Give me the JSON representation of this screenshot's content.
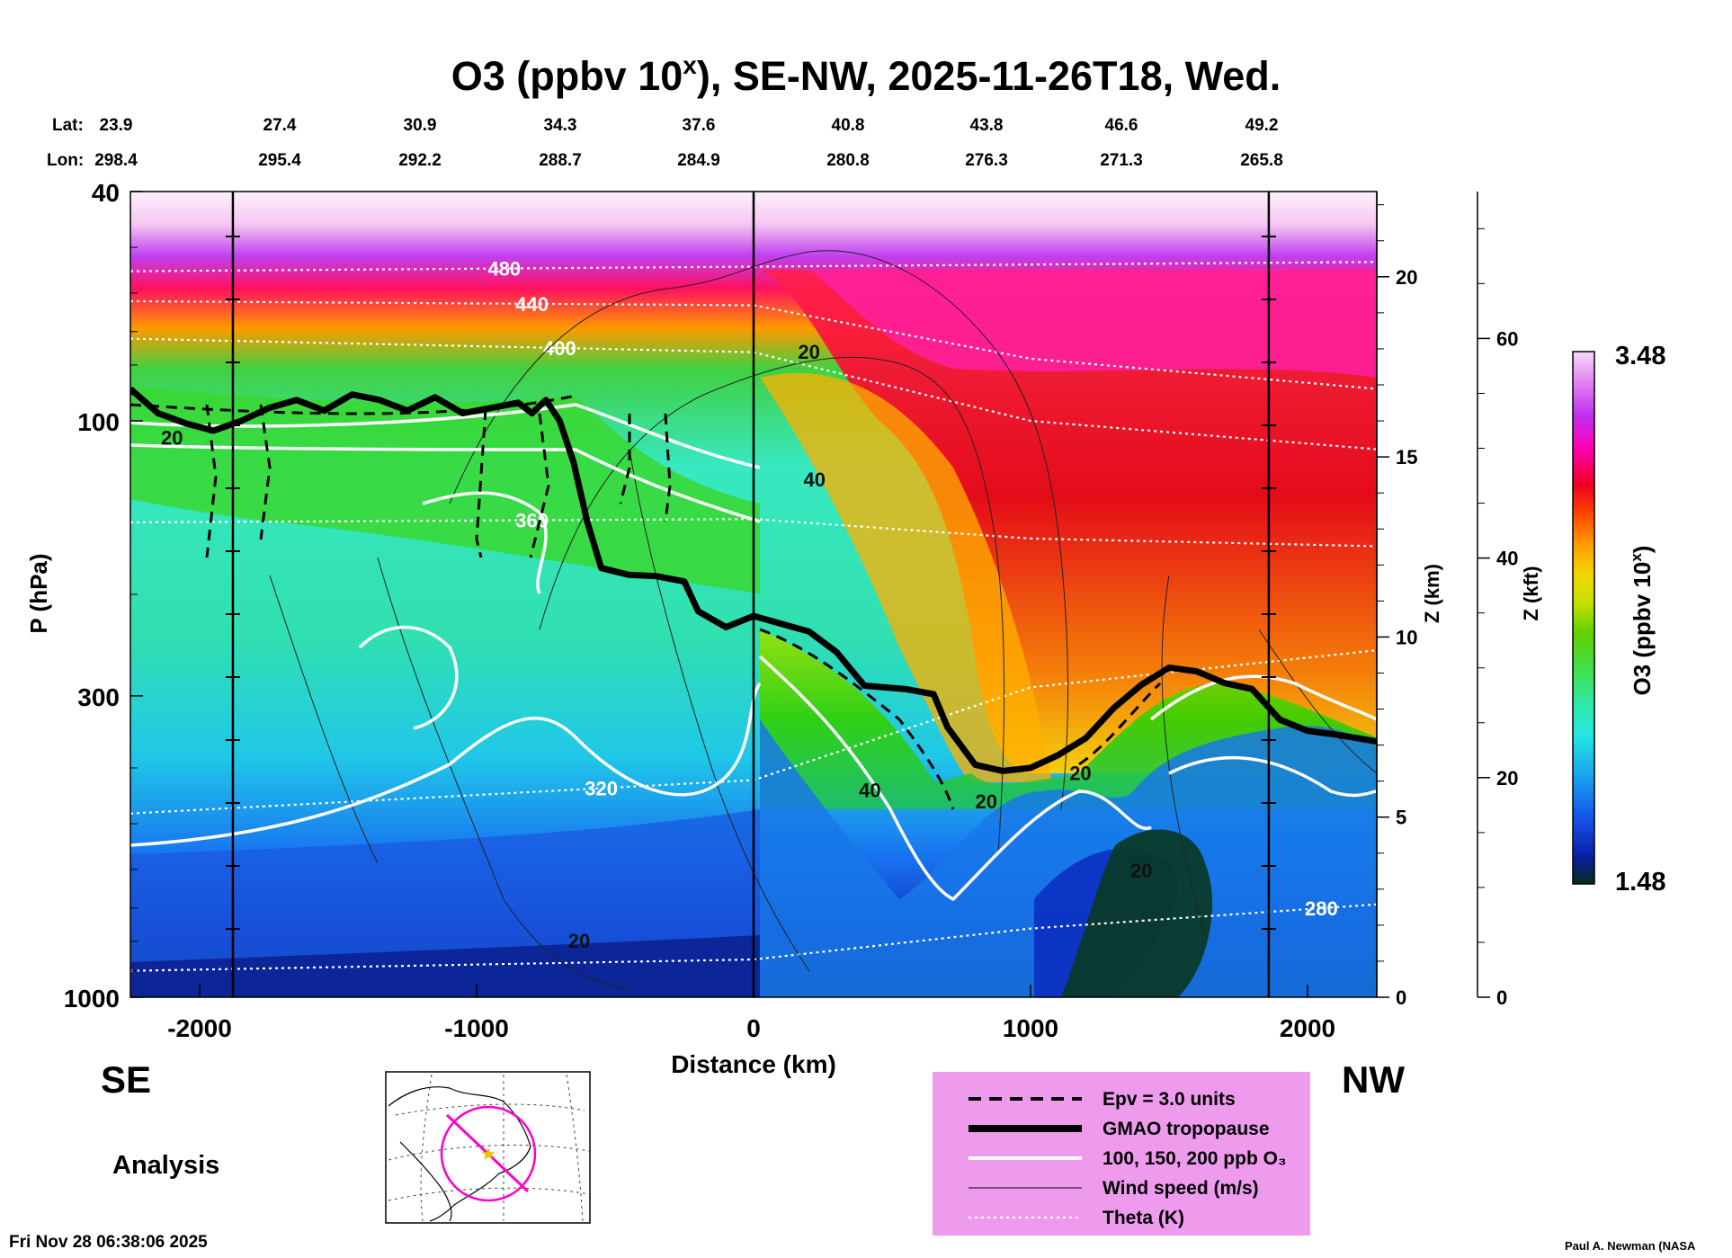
{
  "chart_data": {
    "type": "heatmap",
    "title": {
      "pre": "O3 (ppbv 10",
      "sup": "x",
      "post": "), SE-NW, 2025-11-26T18, Wed."
    },
    "lat_label": "Lat:",
    "lon_label": "Lon:",
    "lat_values": [
      "23.9",
      "27.4",
      "30.9",
      "34.3",
      "37.6",
      "40.8",
      "43.8",
      "46.6",
      "49.2"
    ],
    "lon_values": [
      "298.4",
      "295.4",
      "292.2",
      "288.7",
      "284.9",
      "280.8",
      "276.3",
      "271.3",
      "265.8"
    ],
    "xlabel": "Distance (km)",
    "xlim": [
      -2250,
      2250
    ],
    "xticks": [
      -2000,
      -1000,
      0,
      1000,
      2000
    ],
    "ylabel": "P (hPa)",
    "ylim": [
      1000,
      40
    ],
    "yscale": "log",
    "yticks": [
      40,
      100,
      300,
      1000
    ],
    "zkm_label": "Z (km)",
    "zkm_ticks": [
      0,
      5,
      10,
      15,
      20
    ],
    "zkft_label": "Z (kft)",
    "zkft_ticks": [
      0,
      20,
      40,
      60
    ],
    "colorbar_label_pre": "O3 (ppbv 10",
    "colorbar_label_sup": "x",
    "colorbar_label_post": ")",
    "colorbar_range": [
      "3.48",
      "1.48"
    ],
    "colormap": [
      "#062a1c",
      "#0a1ea0",
      "#1550e8",
      "#18a0f0",
      "#24e8e0",
      "#30e8a8",
      "#40e050",
      "#60d000",
      "#c8e000",
      "#f0d800",
      "#ff9900",
      "#ff4000",
      "#ee0022",
      "#ff00b8",
      "#c030f0",
      "#e080f0",
      "#f8d8f8"
    ],
    "left_label": "SE",
    "right_label": "NW",
    "analysis_label": "Analysis",
    "timestamp": "Fri Nov 28 06:38:06 2025",
    "credit": "Paul A. Newman (NASA",
    "tropopause": [
      [
        -2250,
        88
      ],
      [
        -2150,
        97
      ],
      [
        -2050,
        101
      ],
      [
        -1950,
        104
      ],
      [
        -1850,
        100
      ],
      [
        -1750,
        95
      ],
      [
        -1650,
        92
      ],
      [
        -1550,
        96
      ],
      [
        -1450,
        90
      ],
      [
        -1350,
        92
      ],
      [
        -1250,
        96
      ],
      [
        -1150,
        91
      ],
      [
        -1050,
        97
      ],
      [
        -950,
        95
      ],
      [
        -850,
        93
      ],
      [
        -800,
        97
      ],
      [
        -750,
        92
      ],
      [
        -700,
        100
      ],
      [
        -650,
        118
      ],
      [
        -600,
        150
      ],
      [
        -550,
        180
      ],
      [
        -450,
        185
      ],
      [
        -350,
        186
      ],
      [
        -250,
        190
      ],
      [
        -200,
        214
      ],
      [
        -100,
        228
      ],
      [
        0,
        218
      ],
      [
        100,
        225
      ],
      [
        200,
        232
      ],
      [
        300,
        252
      ],
      [
        400,
        288
      ],
      [
        550,
        292
      ],
      [
        650,
        298
      ],
      [
        700,
        340
      ],
      [
        800,
        395
      ],
      [
        900,
        405
      ],
      [
        1000,
        400
      ],
      [
        1100,
        380
      ],
      [
        1200,
        355
      ],
      [
        1300,
        315
      ],
      [
        1400,
        287
      ],
      [
        1500,
        268
      ],
      [
        1600,
        272
      ],
      [
        1700,
        285
      ],
      [
        1800,
        292
      ],
      [
        1900,
        330
      ],
      [
        2000,
        345
      ],
      [
        2100,
        350
      ],
      [
        2250,
        360
      ]
    ],
    "theta_levels": [
      {
        "label": "480",
        "lx": -900,
        "pts": [
          [
            -2250,
            55
          ],
          [
            0,
            54
          ],
          [
            2250,
            53
          ]
        ]
      },
      {
        "label": "440",
        "lx": -800,
        "pts": [
          [
            -2250,
            62
          ],
          [
            0,
            63
          ],
          [
            1000,
            78
          ],
          [
            2250,
            88
          ]
        ]
      },
      {
        "label": "400",
        "lx": -700,
        "pts": [
          [
            -2250,
            72
          ],
          [
            0,
            76
          ],
          [
            1000,
            100
          ],
          [
            2250,
            112
          ]
        ]
      },
      {
        "label": "360",
        "lx": -800,
        "pts": [
          [
            -2250,
            150
          ],
          [
            0,
            148
          ],
          [
            1000,
            160
          ],
          [
            2250,
            165
          ]
        ]
      },
      {
        "label": "320",
        "lx": -550,
        "pts": [
          [
            -2250,
            480
          ],
          [
            0,
            420
          ],
          [
            1000,
            290
          ],
          [
            2250,
            250
          ]
        ]
      },
      {
        "label": "280",
        "lx": 2050,
        "pts": [
          [
            -2250,
            900
          ],
          [
            0,
            860
          ],
          [
            1000,
            760
          ],
          [
            2250,
            690
          ]
        ]
      }
    ],
    "contour_labels": [
      {
        "text": "20",
        "x": 200,
        "p": 78
      },
      {
        "text": "40",
        "x": 220,
        "p": 130
      },
      {
        "text": "20",
        "x": -2100,
        "p": 110
      },
      {
        "text": "40",
        "x": 420,
        "p": 450
      },
      {
        "text": "20",
        "x": 840,
        "p": 470
      },
      {
        "text": "20",
        "x": 1400,
        "p": 620
      },
      {
        "text": "20",
        "x": -630,
        "p": 820
      },
      {
        "text": "20",
        "x": 1180,
        "p": 420
      }
    ],
    "legend": [
      {
        "style": "dashed",
        "label": "Epv = 3.0 units"
      },
      {
        "style": "thick-black",
        "label": "GMAO tropopause"
      },
      {
        "style": "white",
        "label": "100, 150, 200 ppb O₃"
      },
      {
        "style": "thin-black",
        "label": "Wind speed (m/s)"
      },
      {
        "style": "dotted-white",
        "label": "Theta (K)"
      }
    ],
    "legend_bg": "#ee9bee"
  }
}
